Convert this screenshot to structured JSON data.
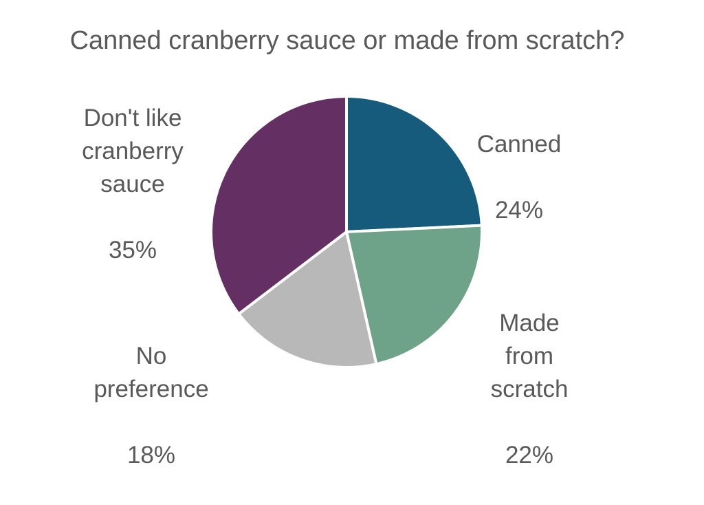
{
  "chart_data": {
    "type": "pie",
    "title": "Canned cranberry sauce or made from scratch?",
    "start_angle_deg": 0,
    "direction": "clockwise",
    "slices": [
      {
        "label": "Canned",
        "value": 24,
        "value_label": "24%",
        "color": "#175b7c"
      },
      {
        "label": "Made\nfrom\nscratch",
        "value": 22,
        "value_label": "22%",
        "color": "#6fa389"
      },
      {
        "label": "No\npreference",
        "value": 18,
        "value_label": "18%",
        "color": "#b8b8b8"
      },
      {
        "label": "Don't like\ncranberry\nsauce",
        "value": 35,
        "value_label": "35%",
        "color": "#642f62"
      }
    ]
  }
}
